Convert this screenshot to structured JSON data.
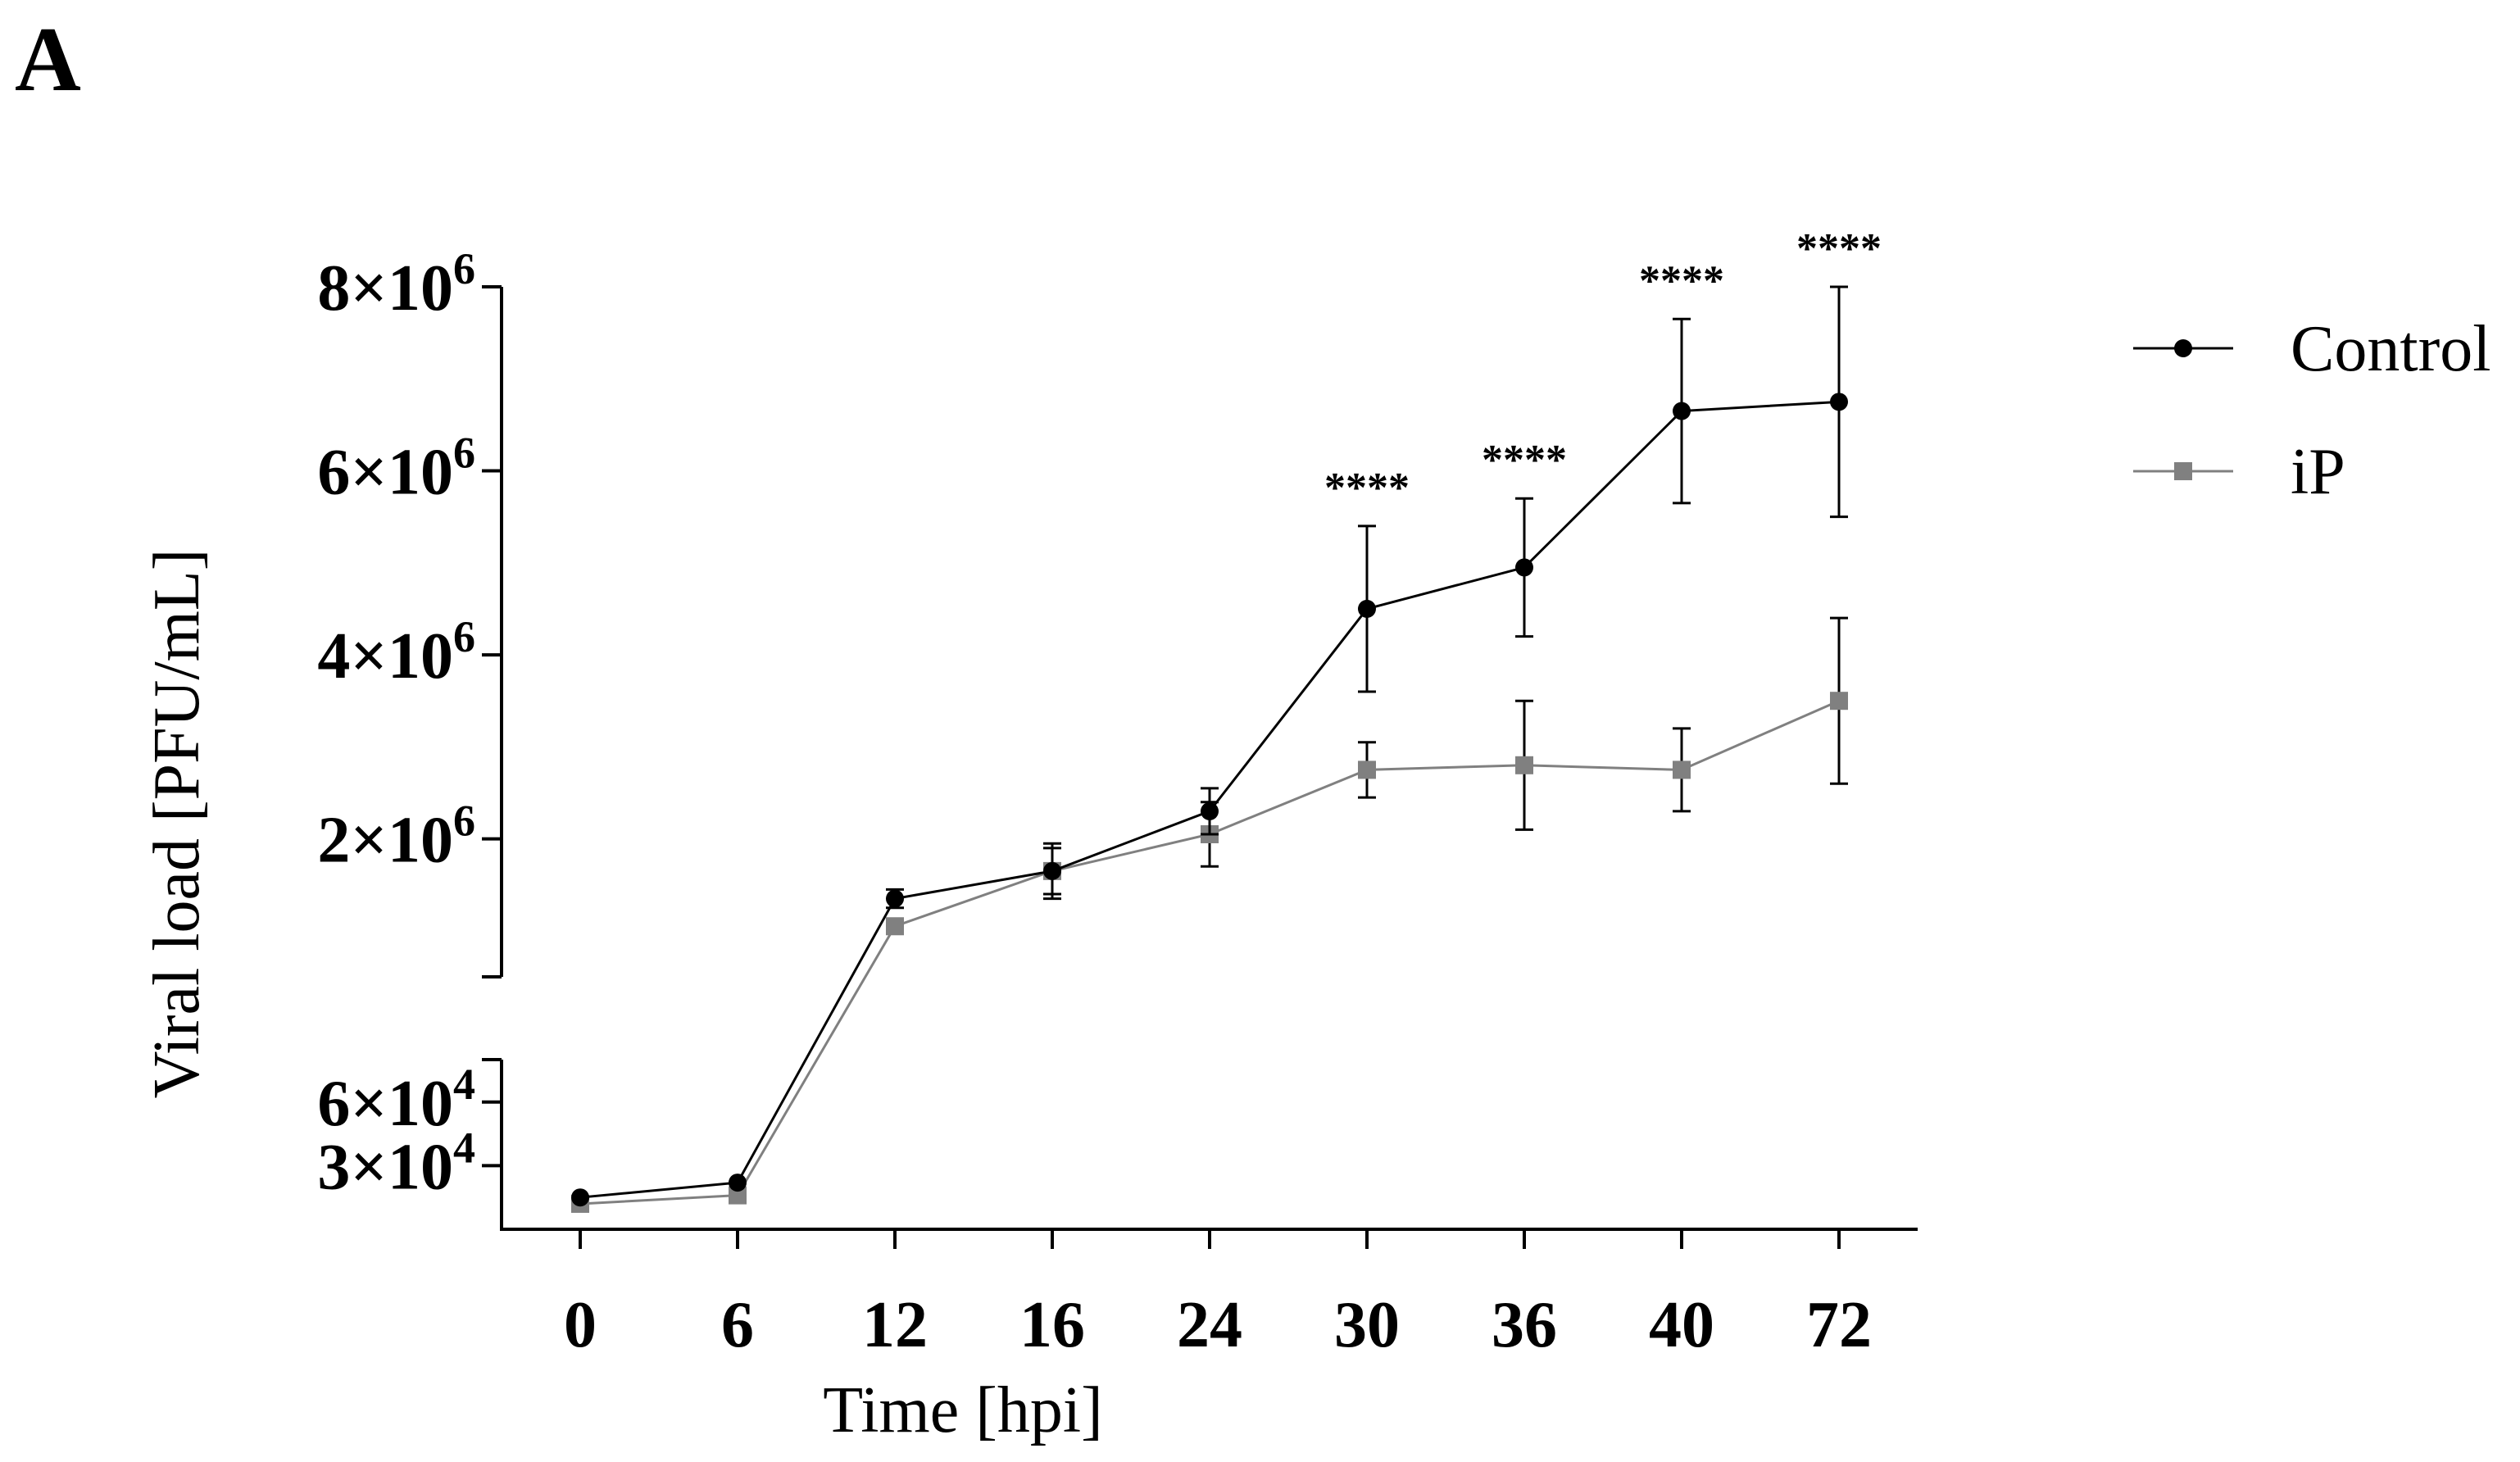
{
  "panel_label": "A",
  "chart_data": {
    "type": "line",
    "title": "",
    "xlabel": "Time [hpi]",
    "ylabel": "Viral load [PFU/mL]",
    "categories": [
      "0",
      "6",
      "12",
      "16",
      "24",
      "30",
      "36",
      "40",
      "72"
    ],
    "y_axis_segments": [
      {
        "name": "lower",
        "range": [
          0,
          80000
        ],
        "ticks": [
          {
            "value": 30000,
            "base": "3×10",
            "exp": "4"
          },
          {
            "value": 60000,
            "base": "6×10",
            "exp": "4"
          }
        ]
      },
      {
        "name": "upper",
        "range": [
          500000,
          8000000
        ],
        "ticks": [
          {
            "value": 2000000,
            "base": "2×10",
            "exp": "6"
          },
          {
            "value": 4000000,
            "base": "4×10",
            "exp": "6"
          },
          {
            "value": 6000000,
            "base": "6×10",
            "exp": "6"
          },
          {
            "value": 8000000,
            "base": "8×10",
            "exp": "6"
          }
        ]
      }
    ],
    "series": [
      {
        "name": "Control",
        "color": "#000000",
        "marker": "circle",
        "values": [
          15000,
          22000,
          1350000,
          1650000,
          2300000,
          4500000,
          4950000,
          6650000,
          6750000
        ],
        "error": [
          null,
          null,
          100000,
          250000,
          250000,
          900000,
          750000,
          1000000,
          1250000
        ]
      },
      {
        "name": "iP",
        "color": "#808080",
        "marker": "square",
        "values": [
          12000,
          16000,
          1050000,
          1650000,
          2050000,
          2750000,
          2800000,
          2750000,
          3500000
        ],
        "error": [
          null,
          null,
          null,
          300000,
          350000,
          300000,
          700000,
          450000,
          900000
        ]
      }
    ],
    "annotations": [
      {
        "category": "30",
        "text": "****"
      },
      {
        "category": "36",
        "text": "****"
      },
      {
        "category": "40",
        "text": "****"
      },
      {
        "category": "72",
        "text": "****"
      }
    ],
    "legend": {
      "position": "right",
      "entries": [
        "Control",
        "iP"
      ]
    }
  }
}
